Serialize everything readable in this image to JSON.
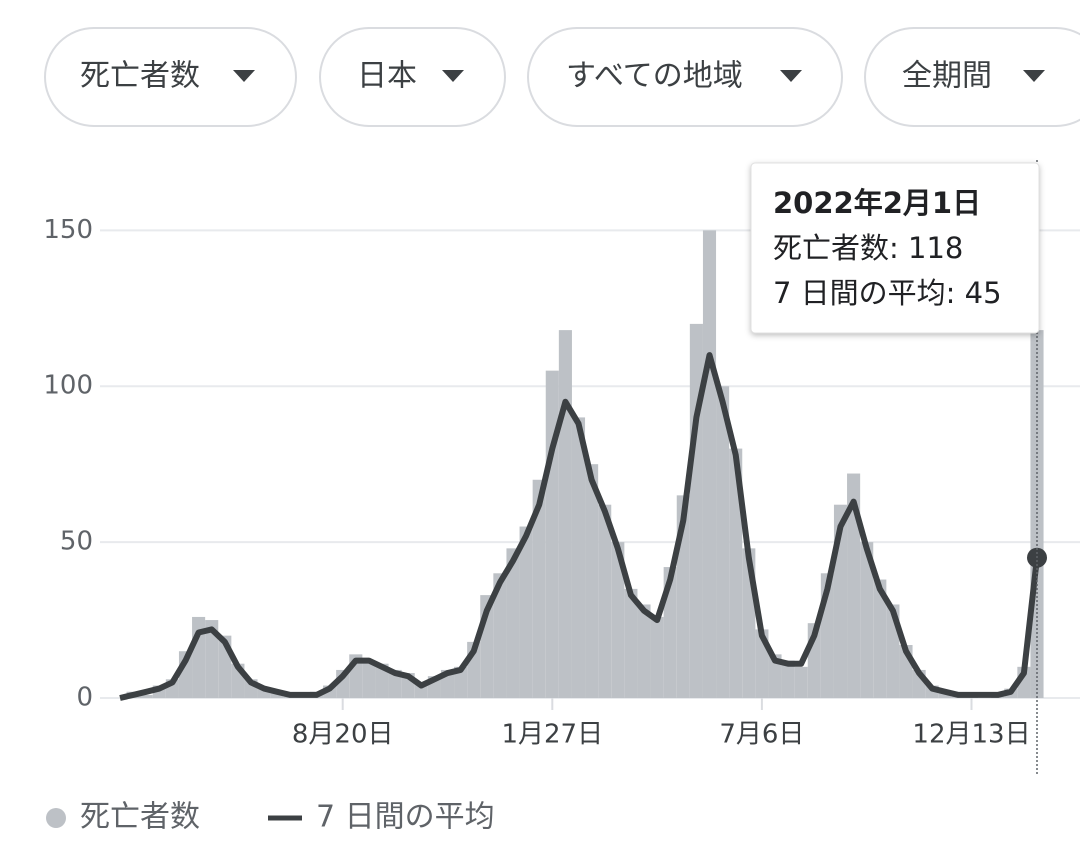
{
  "filters": [
    "死亡者数",
    "日本",
    "すべての地域",
    "全期間"
  ],
  "tooltip": {
    "date": "2022年2月1日",
    "lines": [
      "死亡者数:",
      "7 日間の平均:"
    ]
  },
  "chart_data": {
    "type": "bar-line",
    "categories": [
      null,
      null,
      null,
      null,
      null,
      null,
      null,
      null,
      null,
      null,
      null,
      null,
      null,
      null,
      null,
      null,
      null,
      "8月20日",
      null,
      null,
      null,
      null,
      null,
      null,
      null,
      null,
      null,
      null,
      null,
      null,
      null,
      null,
      null,
      "1月27日",
      null,
      null,
      null,
      null,
      null,
      null,
      null,
      null,
      null,
      null,
      null,
      null,
      null,
      null,
      null,
      "7月6日",
      null,
      null,
      null,
      null,
      null,
      null,
      null,
      null,
      null,
      null,
      null,
      null,
      null,
      null,
      null,
      "12月13日",
      null,
      null,
      null,
      null,
      null
    ],
    "series": [
      {
        "name": "死亡者数",
        "color": "#bdc1c6",
        "values": [
          0,
          2,
          1,
          4,
          6,
          15,
          26,
          25,
          20,
          11,
          6,
          3,
          2,
          1,
          1,
          2,
          4,
          9,
          14,
          12,
          11,
          9,
          8,
          5,
          7,
          9,
          10,
          18,
          33,
          40,
          48,
          55,
          70,
          105,
          118,
          90,
          75,
          62,
          50,
          35,
          30,
          26,
          42,
          65,
          120,
          150,
          100,
          80,
          48,
          22,
          14,
          12,
          10,
          24,
          40,
          62,
          72,
          50,
          38,
          30,
          17,
          9,
          4,
          2,
          1,
          1,
          0,
          1,
          3,
          10,
          118
        ]
      },
      {
        "name": "7 日間の平均",
        "color": "#3c4043",
        "values": [
          0,
          1,
          2,
          3,
          5,
          12,
          21,
          22,
          18,
          10,
          5,
          3,
          2,
          1,
          1,
          1,
          3,
          7,
          12,
          12,
          10,
          8,
          7,
          4,
          6,
          8,
          9,
          15,
          28,
          37,
          44,
          52,
          62,
          80,
          95,
          88,
          70,
          60,
          48,
          33,
          28,
          25,
          38,
          57,
          90,
          110,
          95,
          78,
          45,
          20,
          12,
          11,
          11,
          20,
          35,
          55,
          63,
          48,
          35,
          28,
          15,
          8,
          3,
          2,
          1,
          1,
          1,
          1,
          2,
          8,
          45
        ]
      }
    ],
    "ylim": [
      0,
      170
    ],
    "yticks": [
      0,
      50,
      100,
      150
    ],
    "grid": true
  }
}
